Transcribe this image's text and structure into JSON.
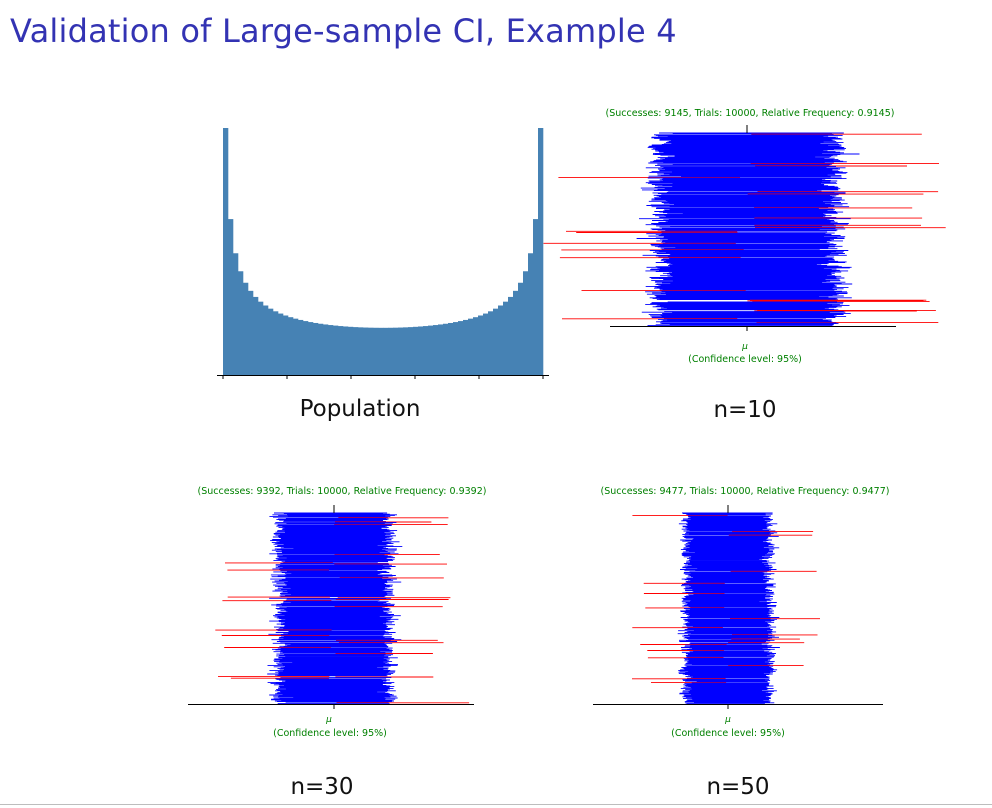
{
  "slide": {
    "title": "Validation of Large-sample CI, Example 4",
    "title_color": "#3333b3"
  },
  "chart_data": [
    {
      "type": "bar",
      "id": "population",
      "caption": "Population",
      "color": "#4682b4",
      "distribution": "U-shaped (arcsine-like), symmetric, peaks at both ends of the support",
      "xticks_count": 6,
      "bins_count": 64
    },
    {
      "type": "interval-plot",
      "id": "n10",
      "caption": "n=10",
      "n": 10,
      "header": "(Successes: 9145, Trials: 10000, Relative Frequency: 0.9145)",
      "successes": 9145,
      "trials": 10000,
      "relative_frequency": 0.9145,
      "mu_label": "μ",
      "footer": "(Confidence level: 95%)",
      "confidence_level": 0.95,
      "cover_color": "#0000ff",
      "miss_color": "#ff0000",
      "annotation_color": "#008000"
    },
    {
      "type": "interval-plot",
      "id": "n30",
      "caption": "n=30",
      "n": 30,
      "header": "(Successes: 9392, Trials: 10000, Relative Frequency: 0.9392)",
      "successes": 9392,
      "trials": 10000,
      "relative_frequency": 0.9392,
      "mu_label": "μ",
      "footer": "(Confidence level: 95%)",
      "confidence_level": 0.95,
      "cover_color": "#0000ff",
      "miss_color": "#ff0000",
      "annotation_color": "#008000"
    },
    {
      "type": "interval-plot",
      "id": "n50",
      "caption": "n=50",
      "n": 50,
      "header": "(Successes: 9477, Trials: 10000, Relative Frequency: 0.9477)",
      "successes": 9477,
      "trials": 10000,
      "relative_frequency": 0.9477,
      "mu_label": "μ",
      "footer": "(Confidence level: 95%)",
      "confidence_level": 0.95,
      "cover_color": "#0000ff",
      "miss_color": "#ff0000",
      "annotation_color": "#008000"
    }
  ]
}
